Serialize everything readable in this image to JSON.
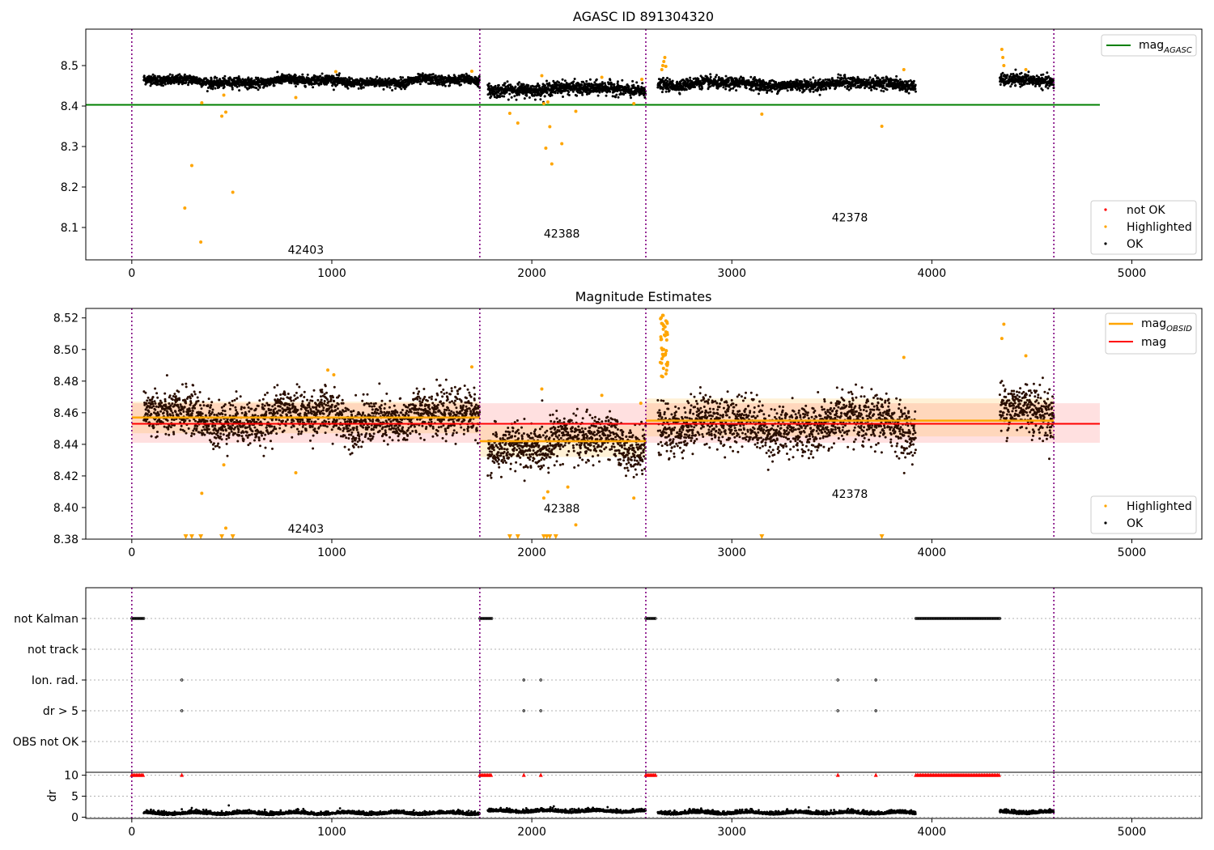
{
  "chart_data": [
    {
      "type": "scatter",
      "title": "AGASC ID 891304320",
      "xlim": [
        -230,
        5350
      ],
      "ylim": [
        8.02,
        8.59
      ],
      "xticks": [
        0,
        1000,
        2000,
        3000,
        4000,
        5000
      ],
      "yticks": [
        8.1,
        8.2,
        8.3,
        8.4,
        8.5
      ],
      "reference_line": {
        "name": "mag",
        "subscript": "AGASC",
        "value": 8.403,
        "x_range": [
          -230,
          4840
        ],
        "color": "#008000"
      },
      "obsid_boundaries": [
        0,
        1740,
        2570,
        4610
      ],
      "obsid_labels": [
        {
          "text": "42403",
          "x": 870,
          "y": 8.035
        },
        {
          "text": "42388",
          "x": 2150,
          "y": 8.075
        },
        {
          "text": "42378",
          "x": 3590,
          "y": 8.115
        }
      ],
      "segments": [
        {
          "x_range": [
            60,
            1740
          ],
          "base": 8.461,
          "noise": 0.006,
          "wave": 0.009
        },
        {
          "x_range": [
            1780,
            2570
          ],
          "base": 8.442,
          "noise": 0.008,
          "wave": 0.007
        },
        {
          "x_range": [
            2630,
            3920
          ],
          "base": 8.454,
          "noise": 0.007,
          "wave": 0.008
        },
        {
          "x_range": [
            4340,
            4610
          ],
          "base": 8.463,
          "noise": 0.007,
          "wave": 0.006
        }
      ],
      "highlighted_points": [
        [
          265,
          8.148
        ],
        [
          300,
          8.253
        ],
        [
          345,
          8.064
        ],
        [
          350,
          8.408
        ],
        [
          450,
          8.375
        ],
        [
          460,
          8.427
        ],
        [
          470,
          8.385
        ],
        [
          505,
          8.187
        ],
        [
          820,
          8.421
        ],
        [
          1020,
          8.485
        ],
        [
          1700,
          8.486
        ],
        [
          1890,
          8.382
        ],
        [
          1930,
          8.358
        ],
        [
          2050,
          8.475
        ],
        [
          2060,
          8.406
        ],
        [
          2070,
          8.296
        ],
        [
          2080,
          8.41
        ],
        [
          2090,
          8.349
        ],
        [
          2100,
          8.257
        ],
        [
          2150,
          8.307
        ],
        [
          2220,
          8.387
        ],
        [
          2350,
          8.471
        ],
        [
          2510,
          8.406
        ],
        [
          2550,
          8.466
        ],
        [
          2650,
          8.49
        ],
        [
          2655,
          8.5
        ],
        [
          2660,
          8.51
        ],
        [
          2665,
          8.52
        ],
        [
          2670,
          8.498
        ],
        [
          3150,
          8.38
        ],
        [
          3750,
          8.35
        ],
        [
          3860,
          8.49
        ],
        [
          4350,
          8.54
        ],
        [
          4355,
          8.52
        ],
        [
          4360,
          8.5
        ],
        [
          4470,
          8.49
        ]
      ],
      "legend": [
        {
          "label": "not OK",
          "color": "#ff0000"
        },
        {
          "label": "Highlighted",
          "color": "#ffa500"
        },
        {
          "label": "OK",
          "color": "#000000"
        }
      ]
    },
    {
      "type": "scatter",
      "title": "Magnitude Estimates",
      "xlim": [
        -230,
        5350
      ],
      "ylim": [
        8.38,
        8.526
      ],
      "xticks": [
        0,
        1000,
        2000,
        3000,
        4000,
        5000
      ],
      "yticks": [
        8.38,
        8.4,
        8.42,
        8.44,
        8.46,
        8.48,
        8.5,
        8.52
      ],
      "ytick_labels": [
        "8.38",
        "8.40",
        "8.42",
        "8.44",
        "8.46",
        "8.48",
        "8.50",
        "8.52"
      ],
      "mag": {
        "name": "mag",
        "value": 8.453,
        "band": [
          8.441,
          8.466
        ],
        "x_range": [
          0,
          4840
        ],
        "color": "#ff0000"
      },
      "mag_obsid": [
        {
          "x_range": [
            0,
            1740
          ],
          "value": 8.457,
          "band": [
            8.447,
            8.467
          ]
        },
        {
          "x_range": [
            1740,
            2570
          ],
          "value": 8.442,
          "band": [
            8.432,
            8.452
          ]
        },
        {
          "x_range": [
            2570,
            4610
          ],
          "value": 8.455,
          "band": [
            8.445,
            8.469
          ]
        }
      ],
      "mag_obsid_legend": {
        "name": "mag",
        "subscript": "OBSID",
        "color": "#ffa500"
      },
      "obsid_boundaries": [
        0,
        1740,
        2570,
        4610
      ],
      "obsid_labels": [
        {
          "text": "42403",
          "x": 870,
          "y": 8.384
        },
        {
          "text": "42388",
          "x": 2150,
          "y": 8.397
        },
        {
          "text": "42378",
          "x": 3590,
          "y": 8.406
        }
      ],
      "segments": [
        {
          "x_range": [
            60,
            1740
          ],
          "base": 8.457,
          "noise": 0.007,
          "wave": 0.008
        },
        {
          "x_range": [
            1780,
            2570
          ],
          "base": 8.441,
          "noise": 0.007,
          "wave": 0.009
        },
        {
          "x_range": [
            2630,
            3920
          ],
          "base": 8.452,
          "noise": 0.008,
          "wave": 0.008
        },
        {
          "x_range": [
            4340,
            4610
          ],
          "base": 8.462,
          "noise": 0.008,
          "wave": 0.006
        }
      ],
      "highlighted_points": [
        [
          350,
          8.409
        ],
        [
          460,
          8.427
        ],
        [
          470,
          8.387
        ],
        [
          820,
          8.422
        ],
        [
          980,
          8.487
        ],
        [
          1010,
          8.484
        ],
        [
          1700,
          8.489
        ],
        [
          2050,
          8.475
        ],
        [
          2060,
          8.406
        ],
        [
          2080,
          8.41
        ],
        [
          2180,
          8.413
        ],
        [
          2220,
          8.389
        ],
        [
          2350,
          8.471
        ],
        [
          2510,
          8.406
        ],
        [
          2545,
          8.466
        ],
        [
          3860,
          8.495
        ],
        [
          4350,
          8.507
        ],
        [
          4360,
          8.516
        ],
        [
          4470,
          8.496
        ]
      ],
      "highlighted_spike": {
        "x_range": [
          2640,
          2680
        ],
        "y_range": [
          8.482,
          8.524
        ]
      },
      "clipped_markers_x": [
        270,
        300,
        345,
        450,
        505,
        1890,
        1930,
        2060,
        2075,
        2090,
        2120,
        3150,
        3750
      ],
      "legend": [
        {
          "label": "Highlighted",
          "color": "#ffa500"
        },
        {
          "label": "OK",
          "color": "#000000"
        }
      ]
    },
    {
      "type": "scatter",
      "title": "",
      "xlim": [
        -230,
        5350
      ],
      "flag_rows": [
        "not Kalman",
        "not track",
        "Ion. rad.",
        "dr > 5",
        "OBS not OK"
      ],
      "flag_points": {
        "not Kalman": [
          [
            0,
            60
          ],
          [
            1740,
            1800
          ],
          [
            2570,
            2620
          ],
          [
            3920,
            4340
          ]
        ],
        "not track": [],
        "Ion. rad.": [
          250,
          1960,
          2045,
          3530,
          3720
        ],
        "dr > 5": [
          250,
          1960,
          2045,
          3530,
          3720
        ],
        "OBS not OK": []
      },
      "obsid_boundaries": [
        0,
        1740,
        2570,
        4610
      ]
    },
    {
      "type": "scatter",
      "title": "",
      "ylabel": "dr",
      "xlim": [
        -230,
        5350
      ],
      "ylim": [
        -0.3,
        10.7
      ],
      "xticks": [
        0,
        1000,
        2000,
        3000,
        4000,
        5000
      ],
      "yticks": [
        0,
        5,
        10
      ],
      "clipped_x": [
        [
          0,
          60
        ],
        [
          1740,
          1800
        ],
        [
          2570,
          2620
        ],
        [
          3920,
          4340
        ],
        250,
        1960,
        2045,
        3530,
        3720
      ],
      "segments": [
        {
          "x_range": [
            60,
            1740
          ],
          "base": 0.7
        },
        {
          "x_range": [
            1780,
            2570
          ],
          "base": 1.2
        },
        {
          "x_range": [
            2630,
            3920
          ],
          "base": 0.8
        },
        {
          "x_range": [
            4340,
            4610
          ],
          "base": 0.9
        }
      ],
      "obsid_boundaries": [
        0,
        1740,
        2570,
        4610
      ]
    }
  ]
}
